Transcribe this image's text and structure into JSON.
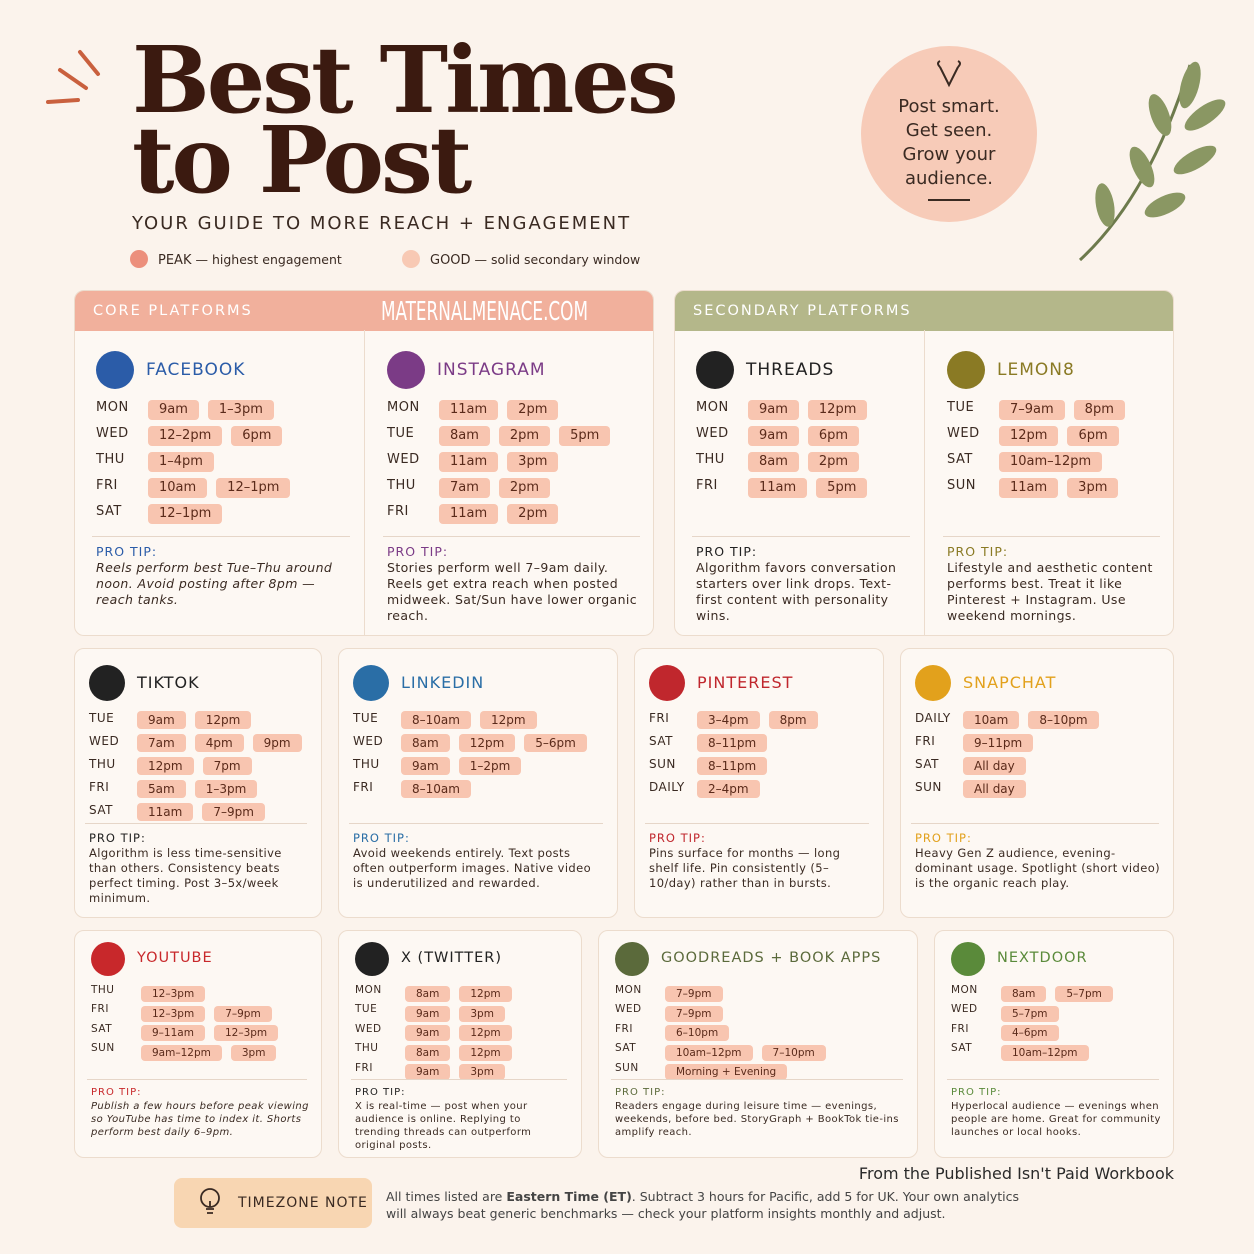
{
  "header": {
    "title_line1": "Best Times",
    "title_line2": "to Post",
    "subtitle": "YOUR GUIDE TO MORE REACH + ENGAGEMENT",
    "legend": [
      {
        "label": "PEAK",
        "desc": "— highest engagement",
        "color": "#ec8f7c"
      },
      {
        "label": "GOOD",
        "desc": "— solid secondary window",
        "color": "#f8c9b4"
      }
    ]
  },
  "badge": {
    "lines": [
      "Post smart.",
      "Get seen.",
      "Grow your",
      "audience."
    ]
  },
  "sections": [
    {
      "title": "CORE PLATFORMS",
      "color": "#f1b09c"
    },
    {
      "title": "SECONDARY PLATFORMS",
      "color": "#b4b78a"
    }
  ],
  "watermark": "MATERNALMENACE.COM",
  "platforms": [
    {
      "name": "FACEBOOK",
      "color": "#2b5ca8",
      "rows": [
        {
          "day": "MON",
          "times": [
            "9am",
            "1–3pm"
          ]
        },
        {
          "day": "WED",
          "times": [
            "12–2pm",
            "6pm"
          ]
        },
        {
          "day": "THU",
          "times": [
            "1–4pm"
          ]
        },
        {
          "day": "FRI",
          "times": [
            "10am",
            "12–1pm"
          ]
        },
        {
          "day": "SAT",
          "times": [
            "12–1pm"
          ]
        }
      ],
      "tip_label": "PRO TIP:",
      "tip": "Reels perform best Tue–Thu around noon. Avoid posting after 8pm — reach tanks."
    },
    {
      "name": "INSTAGRAM",
      "color": "#7b3b86",
      "rows": [
        {
          "day": "MON",
          "times": [
            "11am",
            "2pm"
          ]
        },
        {
          "day": "TUE",
          "times": [
            "8am",
            "2pm",
            "5pm"
          ]
        },
        {
          "day": "WED",
          "times": [
            "11am",
            "3pm"
          ]
        },
        {
          "day": "THU",
          "times": [
            "7am",
            "2pm"
          ]
        },
        {
          "day": "FRI",
          "times": [
            "11am",
            "2pm"
          ]
        }
      ],
      "tip_label": "PRO TIP:",
      "tip": "Stories perform well 7–9am daily. Reels get extra reach when posted midweek. Sat/Sun have lower organic reach."
    },
    {
      "name": "THREADS",
      "color": "#222222",
      "rows": [
        {
          "day": "MON",
          "times": [
            "9am",
            "12pm"
          ]
        },
        {
          "day": "WED",
          "times": [
            "9am",
            "6pm"
          ]
        },
        {
          "day": "THU",
          "times": [
            "8am",
            "2pm"
          ]
        },
        {
          "day": "FRI",
          "times": [
            "11am",
            "5pm"
          ]
        }
      ],
      "tip_label": "PRO TIP:",
      "tip": "Algorithm favors conversation starters over link drops. Text-first content with personality wins."
    },
    {
      "name": "LEMON8",
      "color": "#8a7a24",
      "rows": [
        {
          "day": "TUE",
          "times": [
            "7–9am",
            "8pm"
          ]
        },
        {
          "day": "WED",
          "times": [
            "12pm",
            "6pm"
          ]
        },
        {
          "day": "SAT",
          "times": [
            "10am–12pm"
          ]
        },
        {
          "day": "SUN",
          "times": [
            "11am",
            "3pm"
          ]
        }
      ],
      "tip_label": "PRO TIP:",
      "tip": "Lifestyle and aesthetic content performs best. Treat it like Pinterest + Instagram. Use weekend mornings."
    },
    {
      "name": "TIKTOK",
      "color": "#222222",
      "rows": [
        {
          "day": "TUE",
          "times": [
            "9am",
            "12pm"
          ]
        },
        {
          "day": "WED",
          "times": [
            "7am",
            "4pm",
            "9pm"
          ]
        },
        {
          "day": "THU",
          "times": [
            "12pm",
            "7pm"
          ]
        },
        {
          "day": "FRI",
          "times": [
            "5am",
            "1–3pm"
          ]
        },
        {
          "day": "SAT",
          "times": [
            "11am",
            "7–9pm"
          ]
        }
      ],
      "tip_label": "PRO TIP:",
      "tip": "Algorithm is less time-sensitive than others. Consistency beats perfect timing. Post 3–5x/week minimum."
    },
    {
      "name": "LINKEDIN",
      "color": "#2a6ea6",
      "rows": [
        {
          "day": "TUE",
          "times": [
            "8–10am",
            "12pm"
          ]
        },
        {
          "day": "WED",
          "times": [
            "8am",
            "12pm",
            "5–6pm"
          ]
        },
        {
          "day": "THU",
          "times": [
            "9am",
            "1–2pm"
          ]
        },
        {
          "day": "FRI",
          "times": [
            "8–10am"
          ]
        }
      ],
      "tip_label": "PRO TIP:",
      "tip": "Avoid weekends entirely. Text posts often outperform images. Native video is underutilized and rewarded."
    },
    {
      "name": "PINTEREST",
      "color": "#c0272d",
      "rows": [
        {
          "day": "FRI",
          "times": [
            "3–4pm",
            "8pm"
          ]
        },
        {
          "day": "SAT",
          "times": [
            "8–11pm"
          ]
        },
        {
          "day": "SUN",
          "times": [
            "8–11pm"
          ]
        },
        {
          "day": "DAILY",
          "times": [
            "2–4pm"
          ]
        }
      ],
      "tip_label": "PRO TIP:",
      "tip": "Pins surface for months — long shelf life. Pin consistently (5–10/day) rather than in bursts."
    },
    {
      "name": "SNAPCHAT",
      "color": "#e2a11c",
      "rows": [
        {
          "day": "DAILY",
          "times": [
            "10am",
            "8–10pm"
          ]
        },
        {
          "day": "FRI",
          "times": [
            "9–11pm"
          ]
        },
        {
          "day": "SAT",
          "times": [
            "All day"
          ]
        },
        {
          "day": "SUN",
          "times": [
            "All day"
          ]
        }
      ],
      "tip_label": "PRO TIP:",
      "tip": "Heavy Gen Z audience, evening-dominant usage. Spotlight (short video) is the organic reach play."
    },
    {
      "name": "YOUTUBE",
      "color": "#c8282b",
      "rows": [
        {
          "day": "THU",
          "times": [
            "12–3pm"
          ]
        },
        {
          "day": "FRI",
          "times": [
            "12–3pm",
            "7–9pm"
          ]
        },
        {
          "day": "SAT",
          "times": [
            "9–11am",
            "12–3pm"
          ]
        },
        {
          "day": "SUN",
          "times": [
            "9am–12pm",
            "3pm"
          ]
        }
      ],
      "tip_label": "PRO TIP:",
      "tip": "Publish a few hours before peak viewing so YouTube has time to index it. Shorts perform best daily 6–9pm."
    },
    {
      "name": "X (TWITTER)",
      "color": "#222222",
      "rows": [
        {
          "day": "MON",
          "times": [
            "8am",
            "12pm"
          ]
        },
        {
          "day": "TUE",
          "times": [
            "9am",
            "3pm"
          ]
        },
        {
          "day": "WED",
          "times": [
            "9am",
            "12pm"
          ]
        },
        {
          "day": "THU",
          "times": [
            "8am",
            "12pm"
          ]
        },
        {
          "day": "FRI",
          "times": [
            "9am",
            "3pm"
          ]
        }
      ],
      "tip_label": "PRO TIP:",
      "tip": "X is real-time — post when your audience is online. Replying to trending threads can outperform original posts."
    },
    {
      "name": "GOODREADS + BOOK APPS",
      "color": "#5b6a3b",
      "rows": [
        {
          "day": "MON",
          "times": [
            "7–9pm"
          ]
        },
        {
          "day": "WED",
          "times": [
            "7–9pm"
          ]
        },
        {
          "day": "FRI",
          "times": [
            "6–10pm"
          ]
        },
        {
          "day": "SAT",
          "times": [
            "10am–12pm",
            "7–10pm"
          ]
        },
        {
          "day": "SUN",
          "times": [
            "Morning + Evening"
          ]
        }
      ],
      "tip_label": "PRO TIP:",
      "tip": "Readers engage during leisure time — evenings, weekends, before bed. StoryGraph + BookTok tie-ins amplify reach."
    },
    {
      "name": "NEXTDOOR",
      "color": "#5a8a3a",
      "rows": [
        {
          "day": "MON",
          "times": [
            "8am",
            "5–7pm"
          ]
        },
        {
          "day": "WED",
          "times": [
            "5–7pm"
          ]
        },
        {
          "day": "FRI",
          "times": [
            "4–6pm"
          ]
        },
        {
          "day": "SAT",
          "times": [
            "10am–12pm"
          ]
        }
      ],
      "tip_label": "PRO TIP:",
      "tip": "Hyperlocal audience — evenings when people are home. Great for community launches or local hooks."
    }
  ],
  "source": "From the Published Isn't Paid Workbook",
  "footer": {
    "label": "TIMEZONE NOTE",
    "note_before": "All times listed are ",
    "note_bold": "Eastern Time (ET)",
    "note_after": ". Subtract 3 hours for Pacific, add 5 for UK. Your own analytics will always beat generic benchmarks — check your platform insights monthly and adjust."
  }
}
